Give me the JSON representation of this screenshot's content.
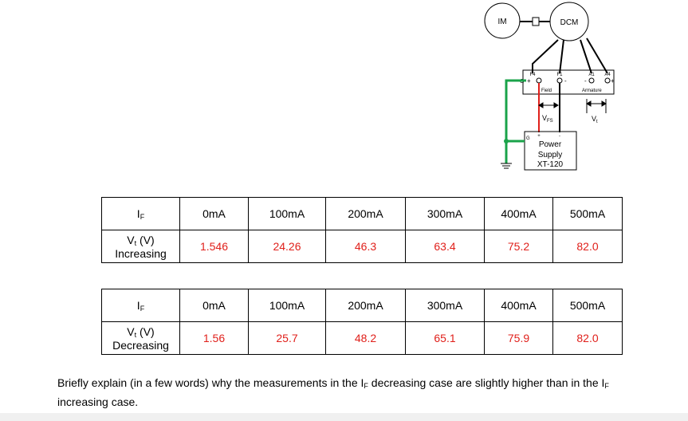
{
  "diagram": {
    "motor_left": "IM",
    "motor_right": "DCM",
    "terminals": [
      "F4",
      "F1",
      "A1",
      "A4"
    ],
    "terminal_polarity": [
      "+",
      "-",
      "-",
      "+"
    ],
    "ground": "G",
    "field": "Field",
    "armature": "Armature",
    "vfs": {
      "main": "V",
      "sub": "FS"
    },
    "vt": {
      "main": "V",
      "sub": "t"
    },
    "supply": [
      "Power",
      "Supply",
      "XT-120"
    ],
    "supply_polarity": [
      "+",
      "-"
    ],
    "supply_ground": "G"
  },
  "tables": [
    {
      "header": {
        "label": {
          "main": "I",
          "sub": "F"
        },
        "cells": [
          "0mA",
          "100mA",
          "200mA",
          "300mA",
          "400mA",
          "500mA"
        ]
      },
      "row": {
        "label": {
          "main": "V",
          "sub": "t",
          "rest": " (V)",
          "line2": "Increasing"
        },
        "cells": [
          "1.546",
          "24.26",
          "46.3",
          "63.4",
          "75.2",
          "82.0"
        ]
      }
    },
    {
      "header": {
        "label": {
          "main": "I",
          "sub": "F"
        },
        "cells": [
          "0mA",
          "100mA",
          "200mA",
          "300mA",
          "400mA",
          "500mA"
        ]
      },
      "row": {
        "label": {
          "main": "V",
          "sub": "t",
          "rest": " (V)",
          "line2": "Decreasing"
        },
        "cells": [
          "1.56",
          "25.7",
          "48.2",
          "65.1",
          "75.9",
          "82.0"
        ]
      }
    }
  ],
  "question": {
    "parts": [
      "Briefly explain (in a few words) why the measurements in the I",
      "F",
      " decreasing case are slightly higher than in the I",
      "F",
      " increasing case."
    ]
  }
}
